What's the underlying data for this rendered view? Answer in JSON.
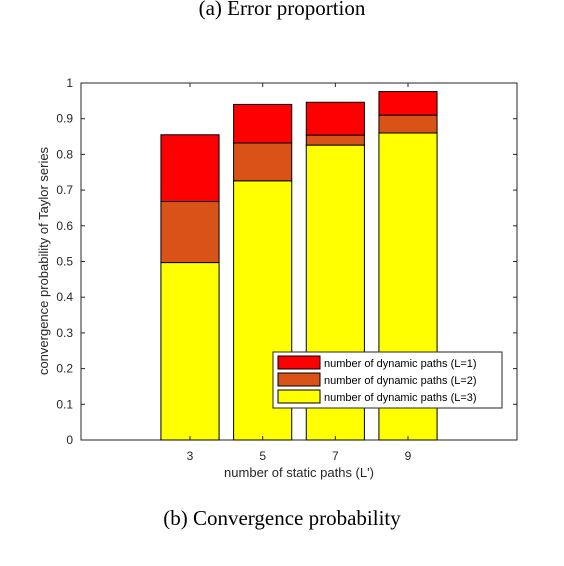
{
  "captions": {
    "top": "(a) Error proportion",
    "bottom": "(b) Convergence probability"
  },
  "colors": {
    "L1": "#ff0000",
    "L2": "#d95319",
    "L3": "#ffff00"
  },
  "chart_data": {
    "type": "bar",
    "stacked": true,
    "categories": [
      "3",
      "5",
      "7",
      "9"
    ],
    "series": [
      {
        "name": "number of dynamic paths (L=3)",
        "values": [
          0.497,
          0.726,
          0.826,
          0.86
        ],
        "color": "#ffff00"
      },
      {
        "name": "number of dynamic paths (L=2)",
        "values": [
          0.171,
          0.106,
          0.028,
          0.05
        ],
        "color": "#d95319"
      },
      {
        "name": "number of dynamic paths (L=1)",
        "values": [
          0.187,
          0.108,
          0.092,
          0.066
        ],
        "color": "#ff0000"
      }
    ],
    "totals": [
      0.855,
      0.94,
      0.946,
      0.976
    ],
    "title": "",
    "xlabel": "number of static paths (L')",
    "ylabel": "convergence probability of Taylor series",
    "ylim": [
      0,
      1
    ],
    "yticks": [
      "0",
      "0.1",
      "0.2",
      "0.3",
      "0.4",
      "0.5",
      "0.6",
      "0.7",
      "0.8",
      "0.9",
      "1"
    ],
    "grid": false,
    "legend_position": "bottom-right",
    "legend_order": [
      "number of dynamic paths (L=1)",
      "number of dynamic paths (L=2)",
      "number of dynamic paths (L=3)"
    ]
  }
}
